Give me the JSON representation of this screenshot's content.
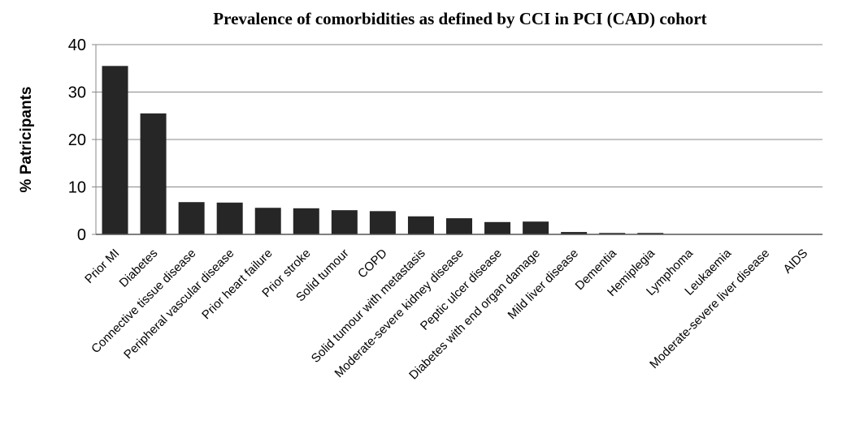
{
  "chart_data": {
    "type": "bar",
    "title": "Prevalence of comorbidities as defined by CCI in PCI (CAD) cohort",
    "y_label": "% Patricipants",
    "categories": [
      "Prior MI",
      "Diabetes",
      "Connective tissue disease",
      "Peripheral vascular disease",
      "Prior heart failure",
      "Prior stroke",
      "Solid tumour",
      "COPD",
      "Solid tumour with metastasis",
      "Moderate-severe kidney disease",
      "Peptic ulcer disease",
      "Diabetes with end organ damage",
      "Mild liver disease",
      "Dementia",
      "Hemiplegia",
      "Lymphoma",
      "Leukaemia",
      "Moderate-severe liver disease",
      "AIDS"
    ],
    "values": [
      35.5,
      25.5,
      6.8,
      6.7,
      5.6,
      5.5,
      5.1,
      4.9,
      3.8,
      3.4,
      2.6,
      2.7,
      0.5,
      0.3,
      0.3,
      0,
      0,
      0,
      0
    ],
    "color": "#262626",
    "ylim": [
      0,
      40
    ],
    "yticks": [
      0,
      10,
      20,
      30,
      40
    ],
    "grid": true
  }
}
